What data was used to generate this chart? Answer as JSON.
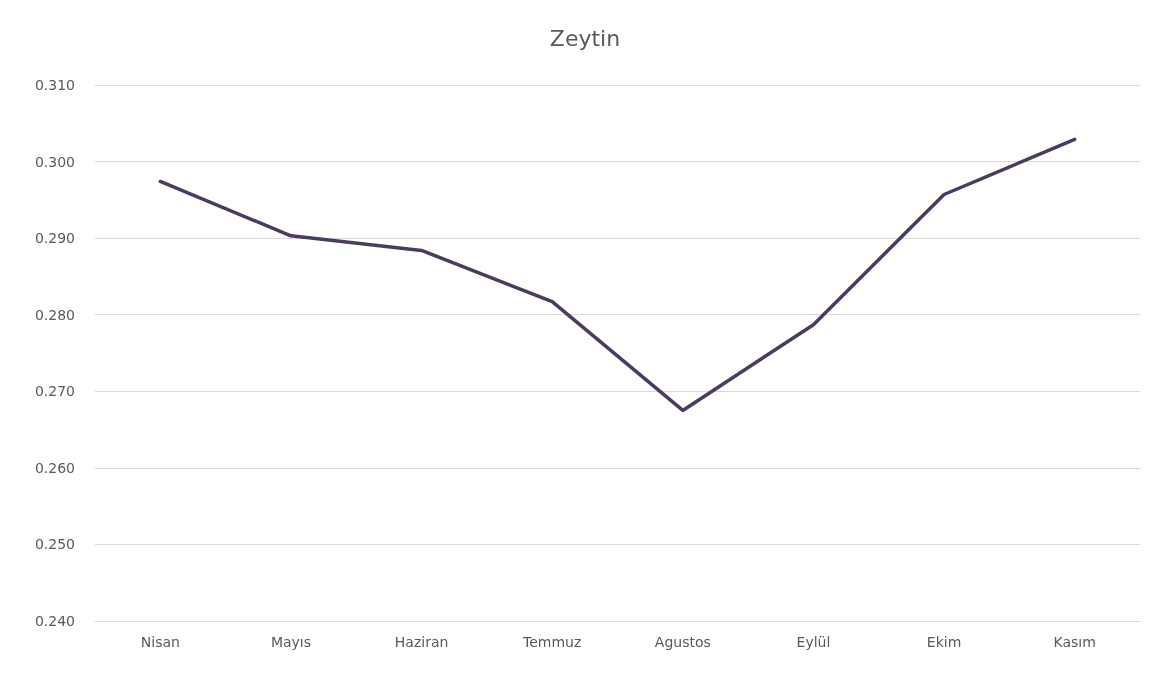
{
  "chart_data": {
    "type": "line",
    "title": "Zeytin",
    "categories": [
      "Nisan",
      "Mayıs",
      "Haziran",
      "Temmuz",
      "Agustos",
      "Eylül",
      "Ekim",
      "Kasım"
    ],
    "series": [
      {
        "color": "#4b3b5f",
        "values": [
          0.2974,
          0.2903,
          0.2884,
          0.2817,
          0.2675,
          0.2787,
          0.2957,
          0.3029
        ]
      }
    ],
    "ylim": [
      0.24,
      0.31
    ],
    "yticks": [
      {
        "value": 0.24,
        "label": "0.240"
      },
      {
        "value": 0.25,
        "label": "0.250"
      },
      {
        "value": 0.26,
        "label": "0.260"
      },
      {
        "value": 0.27,
        "label": "0.270"
      },
      {
        "value": 0.28,
        "label": "0.280"
      },
      {
        "value": 0.29,
        "label": "0.290"
      },
      {
        "value": 0.3,
        "label": "0.300"
      },
      {
        "value": 0.31,
        "label": "0.310"
      }
    ],
    "grid": "y",
    "marker": "none",
    "line_style": "solid"
  }
}
